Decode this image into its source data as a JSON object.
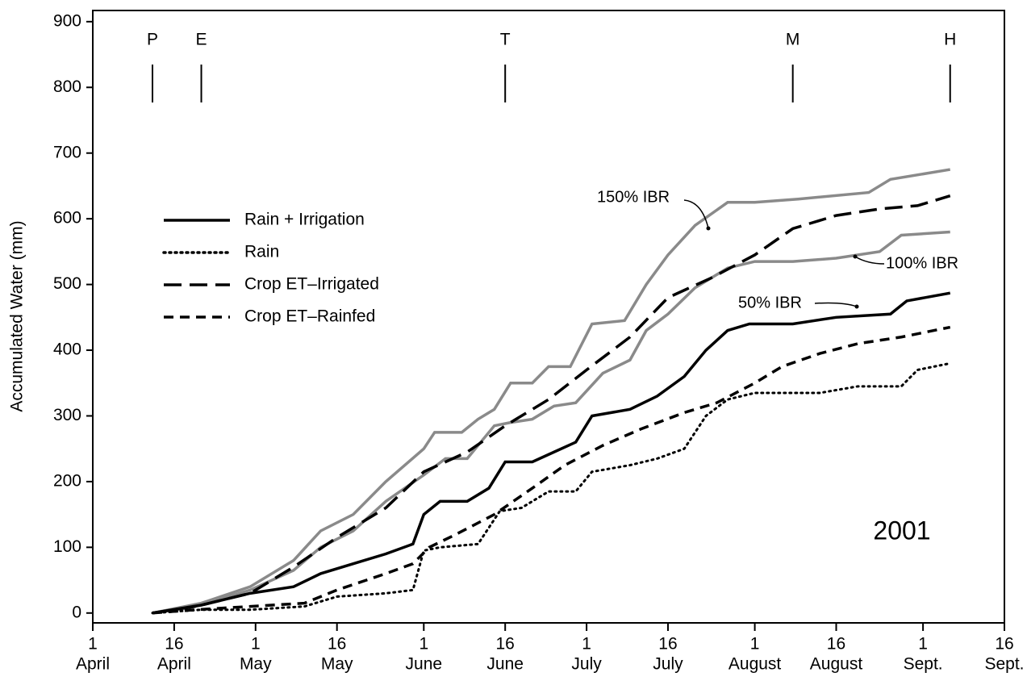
{
  "chart_data": {
    "type": "line",
    "ylabel": "Accumulated Water (mm)",
    "ylim": [
      -15,
      917
    ],
    "yticks": [
      0,
      100,
      200,
      300,
      400,
      500,
      600,
      700,
      800,
      900
    ],
    "xlim": [
      91,
      259
    ],
    "xticks": [
      {
        "value": 91,
        "label": [
          "1",
          "April"
        ]
      },
      {
        "value": 106,
        "label": [
          "16",
          "April"
        ]
      },
      {
        "value": 121,
        "label": [
          "1",
          "May"
        ]
      },
      {
        "value": 136,
        "label": [
          "16",
          "May"
        ]
      },
      {
        "value": 152,
        "label": [
          "1",
          "June"
        ]
      },
      {
        "value": 167,
        "label": [
          "16",
          "June"
        ]
      },
      {
        "value": 182,
        "label": [
          "1",
          "July"
        ]
      },
      {
        "value": 197,
        "label": [
          "16",
          "July"
        ]
      },
      {
        "value": 213,
        "label": [
          "1",
          "August"
        ]
      },
      {
        "value": 228,
        "label": [
          "16",
          "August"
        ]
      },
      {
        "value": 244,
        "label": [
          "1",
          "Sept."
        ]
      },
      {
        "value": 259,
        "label": [
          "16",
          "Sept."
        ]
      }
    ],
    "stages": [
      {
        "label": "P",
        "x": 102
      },
      {
        "label": "E",
        "x": 111
      },
      {
        "label": "T",
        "x": 167
      },
      {
        "label": "M",
        "x": 220
      },
      {
        "label": "H",
        "x": 249
      }
    ],
    "year_label": "2001",
    "series": [
      {
        "label": "150% IBR",
        "color": "#8a8a8a",
        "dash": "solid",
        "x": [
          102,
          111,
          120,
          128,
          133,
          139,
          145,
          152,
          154,
          159,
          162,
          165,
          168,
          172,
          175,
          179,
          183,
          189,
          193,
          197,
          202,
          208,
          213,
          221,
          234,
          238,
          249
        ],
        "values": [
          0,
          15,
          40,
          80,
          125,
          150,
          200,
          250,
          275,
          275,
          295,
          310,
          350,
          350,
          375,
          375,
          440,
          445,
          500,
          545,
          590,
          625,
          625,
          630,
          640,
          660,
          675
        ]
      },
      {
        "label": "100% IBR",
        "color": "#8a8a8a",
        "dash": "solid",
        "x": [
          102,
          111,
          120,
          128,
          133,
          139,
          145,
          152,
          156,
          160,
          165,
          168,
          172,
          176,
          180,
          185,
          190,
          193,
          197,
          202,
          208,
          213,
          220,
          228,
          236,
          240,
          249
        ],
        "values": [
          0,
          12,
          35,
          65,
          100,
          125,
          170,
          210,
          235,
          235,
          285,
          290,
          295,
          315,
          320,
          365,
          385,
          430,
          455,
          495,
          525,
          535,
          535,
          540,
          550,
          575,
          580
        ]
      },
      {
        "name": "Rain + Irrigation",
        "label": "50% IBR",
        "color": "#000000",
        "dash": "solid",
        "x": [
          102,
          111,
          120,
          128,
          133,
          139,
          145,
          150,
          152,
          155,
          160,
          164,
          167,
          172,
          176,
          180,
          183,
          190,
          195,
          200,
          204,
          208,
          212,
          220,
          228,
          238,
          241,
          249
        ],
        "values": [
          0,
          12,
          30,
          40,
          60,
          75,
          90,
          105,
          150,
          170,
          170,
          190,
          230,
          230,
          245,
          260,
          300,
          310,
          330,
          360,
          400,
          430,
          440,
          440,
          450,
          455,
          475,
          487
        ]
      },
      {
        "name": "Rain",
        "color": "#000000",
        "dash": "dotted",
        "x": [
          102,
          111,
          120,
          130,
          136,
          145,
          150,
          152,
          155,
          162,
          166,
          170,
          175,
          180,
          183,
          190,
          195,
          200,
          204,
          208,
          213,
          225,
          232,
          240,
          243,
          249
        ],
        "values": [
          0,
          5,
          5,
          10,
          25,
          30,
          35,
          95,
          100,
          105,
          155,
          160,
          185,
          185,
          215,
          225,
          235,
          250,
          300,
          325,
          335,
          335,
          345,
          345,
          370,
          380
        ]
      },
      {
        "name": "Crop ET–Irrigated",
        "color": "#000000",
        "dash": "long-dash",
        "x": [
          102,
          110,
          120,
          128,
          136,
          145,
          152,
          160,
          167,
          175,
          182,
          190,
          197,
          205,
          213,
          220,
          228,
          236,
          243,
          249
        ],
        "values": [
          0,
          10,
          30,
          70,
          115,
          160,
          215,
          245,
          285,
          325,
          370,
          420,
          480,
          510,
          545,
          585,
          605,
          615,
          620,
          635
        ]
      },
      {
        "name": "Crop ET–Rainfed",
        "color": "#000000",
        "dash": "short-dash",
        "x": [
          102,
          110,
          120,
          130,
          136,
          145,
          150,
          153,
          158,
          165,
          172,
          178,
          185,
          192,
          200,
          206,
          213,
          218,
          225,
          232,
          240,
          249
        ],
        "values": [
          0,
          5,
          10,
          15,
          35,
          60,
          75,
          100,
          120,
          150,
          190,
          225,
          255,
          280,
          305,
          320,
          350,
          375,
          395,
          410,
          420,
          435
        ]
      }
    ]
  }
}
